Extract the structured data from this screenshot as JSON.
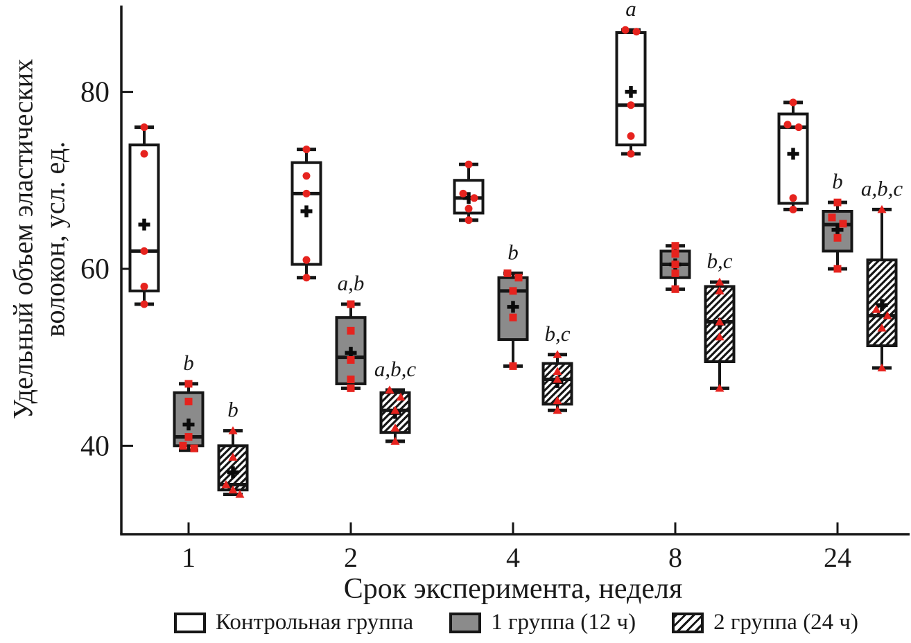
{
  "figure": {
    "y_axis_label_line1": "Удельный объем эластических",
    "y_axis_label_line2": "волокон, усл. ед.",
    "x_axis_label": "Срок эксперимента, неделя"
  },
  "legend": {
    "items": [
      {
        "label": "Контрольная группа",
        "style": "white"
      },
      {
        "label": "1 группа (12 ч)",
        "style": "gray"
      },
      {
        "label": "2 группа (24 ч)",
        "style": "hatch"
      }
    ]
  },
  "chart_data": {
    "type": "boxplot",
    "title": "",
    "categories": [
      "1",
      "2",
      "4",
      "8",
      "24"
    ],
    "xlabel": "Срок эксперимента, неделя",
    "ylabel": "Удельный объем эластических волокон, усл. ед.",
    "yticks": [
      40,
      60,
      80
    ],
    "ylim": [
      30,
      89.6
    ],
    "legend_position": "bottom",
    "grid": false,
    "colors": {
      "box_stroke": "#161616",
      "gray_fill": "#8b8b8b",
      "point_red": "#e6231e",
      "mean_black": "#0b0b0b"
    },
    "series": [
      {
        "name": "Контрольная группа",
        "fill": "white",
        "marker": "circle",
        "boxes": [
          {
            "category": "1",
            "low": 56,
            "q1": 57.5,
            "median": 62,
            "q3": 74,
            "high": 76,
            "mean": 65,
            "points": [
              76,
              73,
              62,
              58,
              56
            ],
            "sig": ""
          },
          {
            "category": "2",
            "low": 59,
            "q1": 60.5,
            "median": 68.5,
            "q3": 72,
            "high": 73.5,
            "mean": 66.5,
            "points": [
              73.5,
              70.5,
              68.5,
              61,
              59
            ],
            "sig": ""
          },
          {
            "category": "4",
            "low": 65.5,
            "q1": 66.3,
            "median": 68,
            "q3": 70,
            "high": 71.8,
            "mean": 68,
            "points": [
              71.8,
              68.5,
              68,
              66.8,
              65.5
            ],
            "sig": ""
          },
          {
            "category": "8",
            "low": 73,
            "q1": 74,
            "median": 78.5,
            "q3": 86.7,
            "high": 87,
            "mean": 80,
            "points": [
              87,
              86.8,
              78.5,
              75,
              73
            ],
            "sig": "a"
          },
          {
            "category": "24",
            "low": 66.7,
            "q1": 67.4,
            "median": 76,
            "q3": 77.5,
            "high": 78.8,
            "mean": 73,
            "points": [
              78.8,
              76.3,
              76,
              68,
              66.7
            ],
            "sig": ""
          }
        ]
      },
      {
        "name": "1 группа (12 ч)",
        "fill": "gray",
        "marker": "square",
        "boxes": [
          {
            "category": "1",
            "low": 39.5,
            "q1": 40,
            "median": 41,
            "q3": 46,
            "high": 47,
            "mean": 42.4,
            "points": [
              47,
              45,
              41,
              40,
              39.7
            ],
            "sig": "b"
          },
          {
            "category": "2",
            "low": 46.5,
            "q1": 47,
            "median": 50,
            "q3": 54.5,
            "high": 56,
            "mean": 50.5,
            "points": [
              56,
              53,
              49.7,
              47.5,
              46.5
            ],
            "sig": "a,b"
          },
          {
            "category": "4",
            "low": 49,
            "q1": 52,
            "median": 57.5,
            "q3": 59,
            "high": 59.5,
            "mean": 55.7,
            "points": [
              59.5,
              59,
              57.5,
              54.5,
              49
            ],
            "sig": "b"
          },
          {
            "category": "8",
            "low": 57.7,
            "q1": 59,
            "median": 60.5,
            "q3": 62,
            "high": 62.6,
            "mean": 60.5,
            "points": [
              62.6,
              61.7,
              60.5,
              59.5,
              57.7
            ],
            "sig": ""
          },
          {
            "category": "24",
            "low": 60,
            "q1": 62,
            "median": 65,
            "q3": 66.5,
            "high": 67.5,
            "mean": 64.4,
            "points": [
              67.5,
              65.8,
              65.1,
              63.5,
              60
            ],
            "sig": "b"
          }
        ]
      },
      {
        "name": "2 группа (24 ч)",
        "fill": "hatch",
        "marker": "triangle",
        "boxes": [
          {
            "category": "1",
            "low": 34.5,
            "q1": 35,
            "median": 35.6,
            "q3": 40,
            "high": 41.7,
            "mean": 37,
            "points": [
              41.7,
              38.7,
              35.6,
              35,
              34.5
            ],
            "sig": "b"
          },
          {
            "category": "2",
            "low": 40.5,
            "q1": 41.5,
            "median": 44,
            "q3": 46,
            "high": 46.3,
            "mean": 43.7,
            "points": [
              46.3,
              45.5,
              44,
              42,
              40.5
            ],
            "sig": "a,b,c"
          },
          {
            "category": "4",
            "low": 44,
            "q1": 44.7,
            "median": 47.5,
            "q3": 49.3,
            "high": 50.3,
            "mean": 47.2,
            "points": [
              50.3,
              48.4,
              47.5,
              45.1,
              44
            ],
            "sig": "b,c"
          },
          {
            "category": "8",
            "low": 46.5,
            "q1": 49.5,
            "median": 54,
            "q3": 58,
            "high": 58.5,
            "mean": 53.8,
            "points": [
              58.5,
              57.5,
              54,
              52.3,
              46.5
            ],
            "sig": "b,c"
          },
          {
            "category": "24",
            "low": 48.8,
            "q1": 51.3,
            "median": 54.7,
            "q3": 61,
            "high": 66.7,
            "mean": 55.9,
            "points": [
              66.7,
              55.4,
              54.7,
              53.3,
              48.8
            ],
            "sig": "a,b,c"
          }
        ]
      }
    ]
  }
}
